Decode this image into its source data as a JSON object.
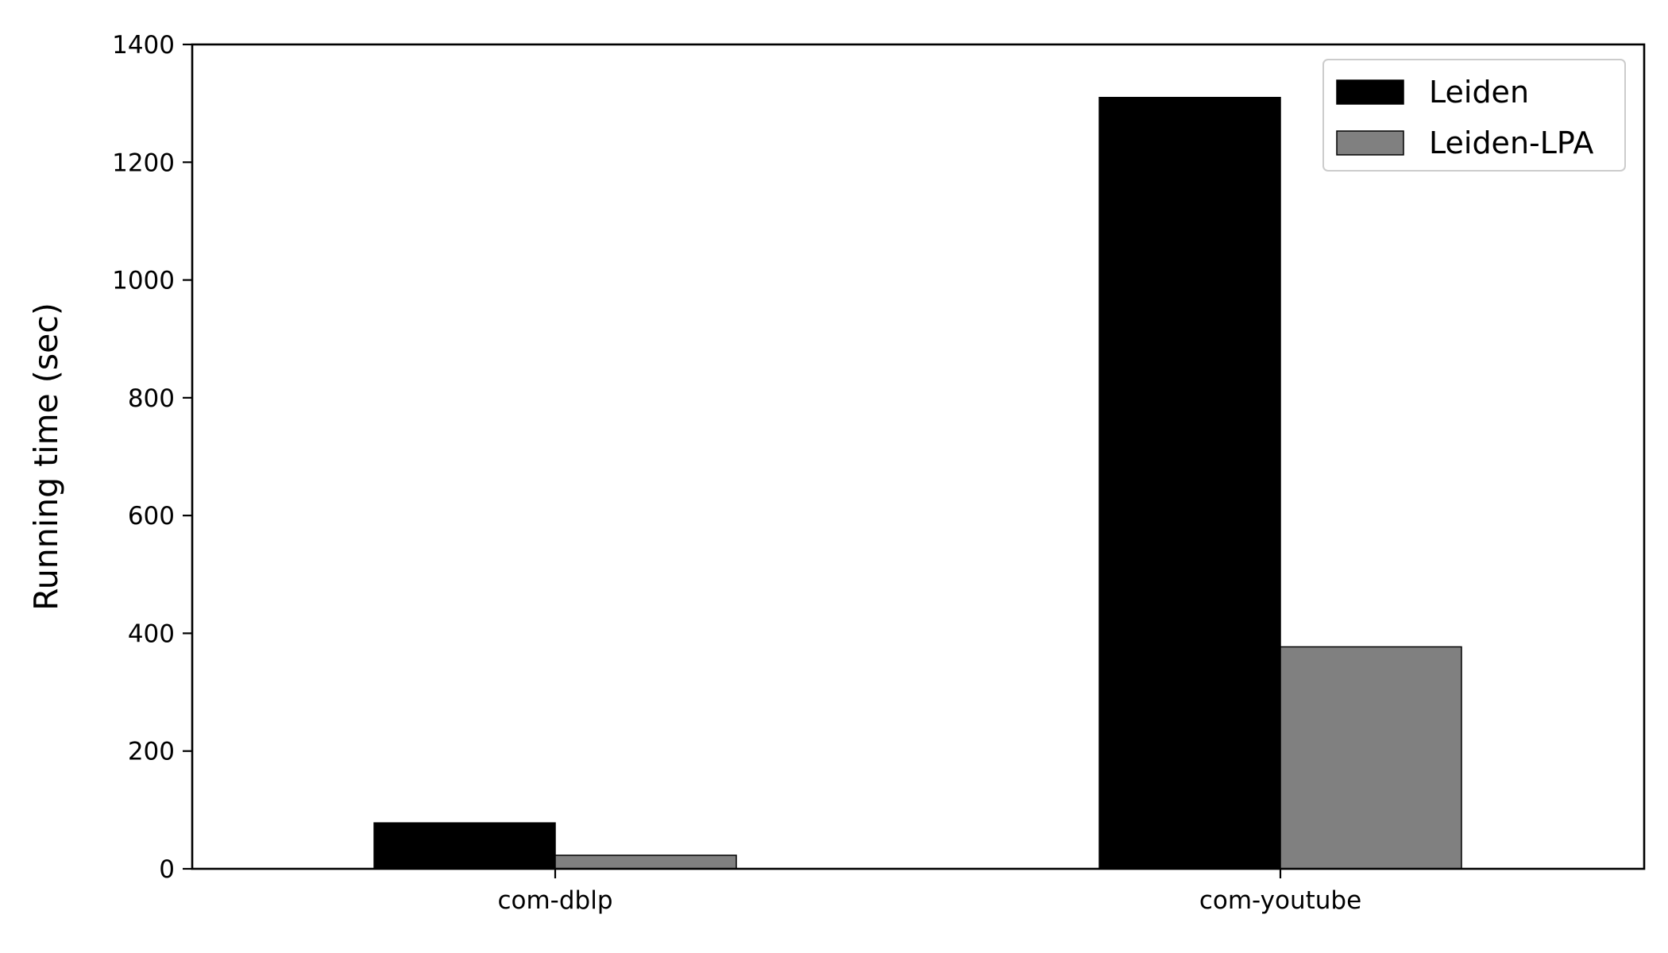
{
  "chart_data": {
    "type": "bar",
    "title": "",
    "xlabel": "",
    "ylabel": "Running time (sec)",
    "categories": [
      "com-dblp",
      "com-youtube"
    ],
    "series": [
      {
        "name": "Leiden",
        "values": [
          78,
          1310
        ],
        "color": "#000000"
      },
      {
        "name": "Leiden-LPA",
        "values": [
          23,
          377
        ],
        "color": "#808080"
      }
    ],
    "ylim": [
      0,
      1400
    ],
    "yticks": [
      0,
      200,
      400,
      600,
      800,
      1000,
      1200,
      1400
    ],
    "ytick_labels": [
      "0",
      "200",
      "400",
      "600",
      "800",
      "1000",
      "1200",
      "1400"
    ],
    "grid": false,
    "legend_position": "top-right"
  }
}
